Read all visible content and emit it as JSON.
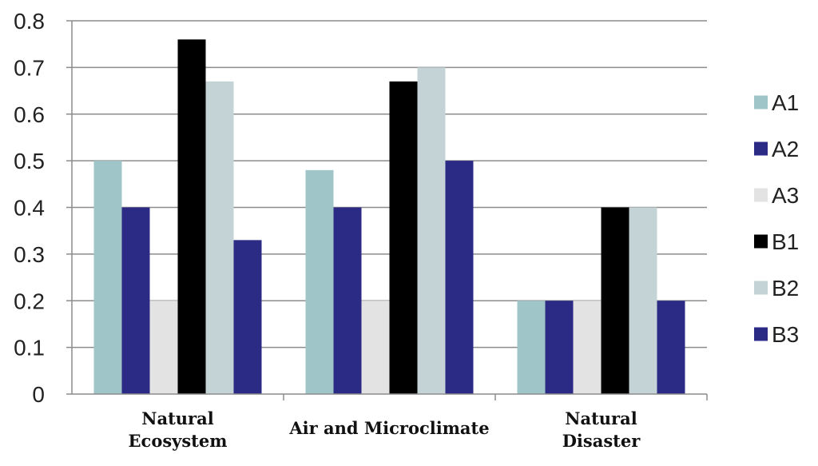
{
  "chart_data": {
    "type": "bar",
    "title": "",
    "xlabel": "",
    "ylabel": "",
    "ylim": [
      0,
      0.8
    ],
    "yticks": [
      "0",
      "0.1",
      "0.2",
      "0.3",
      "0.4",
      "0.5",
      "0.6",
      "0.7",
      "0.8"
    ],
    "ytick_values": [
      0,
      0.1,
      0.2,
      0.3,
      0.4,
      0.5,
      0.6,
      0.7,
      0.8
    ],
    "grid": true,
    "legend_position": "right",
    "categories": [
      [
        "Natural",
        "Ecosystem"
      ],
      [
        "Air and Microclimate"
      ],
      [
        "Natural",
        "Disaster"
      ]
    ],
    "series": [
      {
        "name": "A1",
        "color": "#9fc5c8",
        "values": [
          0.5,
          0.48,
          0.2
        ]
      },
      {
        "name": "A2",
        "color": "#2b2a85",
        "values": [
          0.4,
          0.4,
          0.2
        ]
      },
      {
        "name": "A3",
        "color": "#e3e3e3",
        "values": [
          0.2,
          0.2,
          0.2
        ]
      },
      {
        "name": "B1",
        "color": "#000000",
        "values": [
          0.76,
          0.67,
          0.4
        ]
      },
      {
        "name": "B2",
        "color": "#c3d3d6",
        "values": [
          0.67,
          0.7,
          0.4
        ]
      },
      {
        "name": "B3",
        "color": "#2b2a85",
        "values": [
          0.33,
          0.5,
          0.2
        ]
      }
    ]
  }
}
